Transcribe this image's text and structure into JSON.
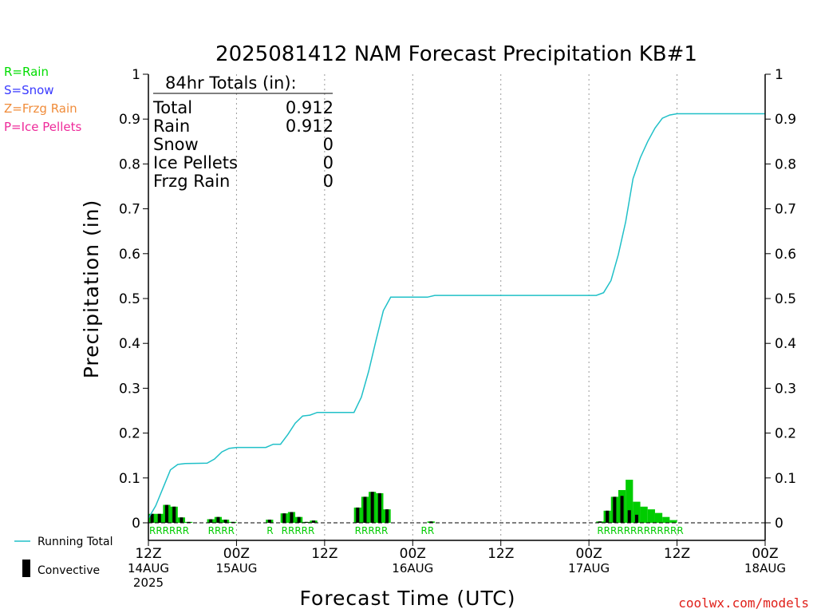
{
  "chart_data": {
    "type": "bar",
    "title": "2025081412 NAM Forecast Precipitation KB#1",
    "xlabel": "Forecast Time (UTC)",
    "ylabel": "Precipitation (in)",
    "ylim": [
      0,
      1
    ],
    "y_ticks": [
      "0",
      "0.1",
      "0.2",
      "0.3",
      "0.4",
      "0.5",
      "0.6",
      "0.7",
      "0.8",
      "0.9",
      "1"
    ],
    "x_range_hours": [
      0,
      84
    ],
    "x_ticks": [
      {
        "hour": 0,
        "lines": [
          "12Z",
          "14AUG",
          "2025"
        ]
      },
      {
        "hour": 12,
        "lines": [
          "00Z",
          "15AUG"
        ]
      },
      {
        "hour": 24,
        "lines": [
          "12Z"
        ]
      },
      {
        "hour": 36,
        "lines": [
          "00Z",
          "16AUG"
        ]
      },
      {
        "hour": 48,
        "lines": [
          "12Z"
        ]
      },
      {
        "hour": 60,
        "lines": [
          "00Z",
          "17AUG"
        ]
      },
      {
        "hour": 72,
        "lines": [
          "12Z"
        ]
      },
      {
        "hour": 84,
        "lines": [
          "00Z",
          "18AUG"
        ]
      }
    ],
    "type_legend": [
      {
        "label": "R=Rain",
        "color": "#00dd00"
      },
      {
        "label": "S=Snow",
        "color": "#3a3aff"
      },
      {
        "label": "Z=Frzg Rain",
        "color": "#f08c3a"
      },
      {
        "label": "P=Ice Pellets",
        "color": "#ee2a9a"
      }
    ],
    "totals_box": {
      "header": "84hr Totals (in):",
      "rows": [
        {
          "label": "Total",
          "value": "0.912"
        },
        {
          "label": "Rain",
          "value": "0.912"
        },
        {
          "label": "Snow",
          "value": "0"
        },
        {
          "label": "Ice Pellets",
          "value": "0"
        },
        {
          "label": "Frzg Rain",
          "value": "0"
        }
      ]
    },
    "bar_color": "#00cc00",
    "convective_color": "#000000",
    "line_color": "#20c0c8",
    "hourly_precip": [
      {
        "hour": 1,
        "total": 0.02,
        "conv": 0.02
      },
      {
        "hour": 2,
        "total": 0.02,
        "conv": 0.02
      },
      {
        "hour": 3,
        "total": 0.04,
        "conv": 0.04
      },
      {
        "hour": 4,
        "total": 0.036,
        "conv": 0.036
      },
      {
        "hour": 5,
        "total": 0.012,
        "conv": 0.012
      },
      {
        "hour": 6,
        "total": 0.002,
        "conv": 0.002
      },
      {
        "hour": 9,
        "total": 0.008,
        "conv": 0.008
      },
      {
        "hour": 10,
        "total": 0.013,
        "conv": 0.013
      },
      {
        "hour": 11,
        "total": 0.007,
        "conv": 0.007
      },
      {
        "hour": 12,
        "total": 0.002,
        "conv": 0.002
      },
      {
        "hour": 17,
        "total": 0.007,
        "conv": 0.007
      },
      {
        "hour": 19,
        "total": 0.021,
        "conv": 0.021
      },
      {
        "hour": 20,
        "total": 0.024,
        "conv": 0.024
      },
      {
        "hour": 21,
        "total": 0.013,
        "conv": 0.013
      },
      {
        "hour": 22,
        "total": 0.002,
        "conv": 0.002
      },
      {
        "hour": 23,
        "total": 0.005,
        "conv": 0.005
      },
      {
        "hour": 29,
        "total": 0.034,
        "conv": 0.034
      },
      {
        "hour": 30,
        "total": 0.058,
        "conv": 0.058
      },
      {
        "hour": 31,
        "total": 0.069,
        "conv": 0.069
      },
      {
        "hour": 32,
        "total": 0.066,
        "conv": 0.066
      },
      {
        "hour": 33,
        "total": 0.03,
        "conv": 0.03
      },
      {
        "hour": 39,
        "total": 0.003,
        "conv": 0.003
      },
      {
        "hour": 62,
        "total": 0.003,
        "conv": 0.003
      },
      {
        "hour": 63,
        "total": 0.027,
        "conv": 0.027
      },
      {
        "hour": 64,
        "total": 0.058,
        "conv": 0.058
      },
      {
        "hour": 65,
        "total": 0.073,
        "conv": 0.06
      },
      {
        "hour": 66,
        "total": 0.096,
        "conv": 0.028
      },
      {
        "hour": 67,
        "total": 0.047,
        "conv": 0.018
      },
      {
        "hour": 68,
        "total": 0.036,
        "conv": 0
      },
      {
        "hour": 69,
        "total": 0.03,
        "conv": 0
      },
      {
        "hour": 70,
        "total": 0.022,
        "conv": 0
      },
      {
        "hour": 71,
        "total": 0.013,
        "conv": 0
      },
      {
        "hour": 72,
        "total": 0.006,
        "conv": 0
      }
    ],
    "running_total": [
      {
        "hour": 0,
        "value": 0.01
      },
      {
        "hour": 1,
        "value": 0.038
      },
      {
        "hour": 2,
        "value": 0.078
      },
      {
        "hour": 3,
        "value": 0.118
      },
      {
        "hour": 4,
        "value": 0.13
      },
      {
        "hour": 5,
        "value": 0.132
      },
      {
        "hour": 8,
        "value": 0.133
      },
      {
        "hour": 9,
        "value": 0.142
      },
      {
        "hour": 10,
        "value": 0.158
      },
      {
        "hour": 11,
        "value": 0.166
      },
      {
        "hour": 12,
        "value": 0.168
      },
      {
        "hour": 16,
        "value": 0.168
      },
      {
        "hour": 17,
        "value": 0.175
      },
      {
        "hour": 18,
        "value": 0.175
      },
      {
        "hour": 19,
        "value": 0.197
      },
      {
        "hour": 20,
        "value": 0.222
      },
      {
        "hour": 21,
        "value": 0.238
      },
      {
        "hour": 22,
        "value": 0.24
      },
      {
        "hour": 23,
        "value": 0.246
      },
      {
        "hour": 28,
        "value": 0.246
      },
      {
        "hour": 29,
        "value": 0.28
      },
      {
        "hour": 30,
        "value": 0.338
      },
      {
        "hour": 31,
        "value": 0.407
      },
      {
        "hour": 32,
        "value": 0.473
      },
      {
        "hour": 33,
        "value": 0.503
      },
      {
        "hour": 38,
        "value": 0.503
      },
      {
        "hour": 39,
        "value": 0.507
      },
      {
        "hour": 61,
        "value": 0.507
      },
      {
        "hour": 62,
        "value": 0.513
      },
      {
        "hour": 63,
        "value": 0.54
      },
      {
        "hour": 64,
        "value": 0.598
      },
      {
        "hour": 65,
        "value": 0.671
      },
      {
        "hour": 66,
        "value": 0.767
      },
      {
        "hour": 67,
        "value": 0.814
      },
      {
        "hour": 68,
        "value": 0.85
      },
      {
        "hour": 69,
        "value": 0.88
      },
      {
        "hour": 70,
        "value": 0.902
      },
      {
        "hour": 71,
        "value": 0.909
      },
      {
        "hour": 72,
        "value": 0.912
      },
      {
        "hour": 84,
        "value": 0.912
      }
    ],
    "precip_type_labels": [
      {
        "start_hour": 1,
        "text": "RRRRRR"
      },
      {
        "start_hour": 9,
        "text": "RRRR"
      },
      {
        "start_hour": 17,
        "text": "R"
      },
      {
        "start_hour": 19,
        "text": "RRRRR"
      },
      {
        "start_hour": 29,
        "text": "RRRRR"
      },
      {
        "start_hour": 38,
        "text": "RR"
      },
      {
        "start_hour": 62,
        "text": "RRRRRRRRRRRRR"
      }
    ],
    "bottom_legend": [
      {
        "label": "Running Total",
        "symbol": "line"
      },
      {
        "label": "Convective",
        "symbol": "bar"
      }
    ],
    "credit": "coolwx.com/models"
  }
}
